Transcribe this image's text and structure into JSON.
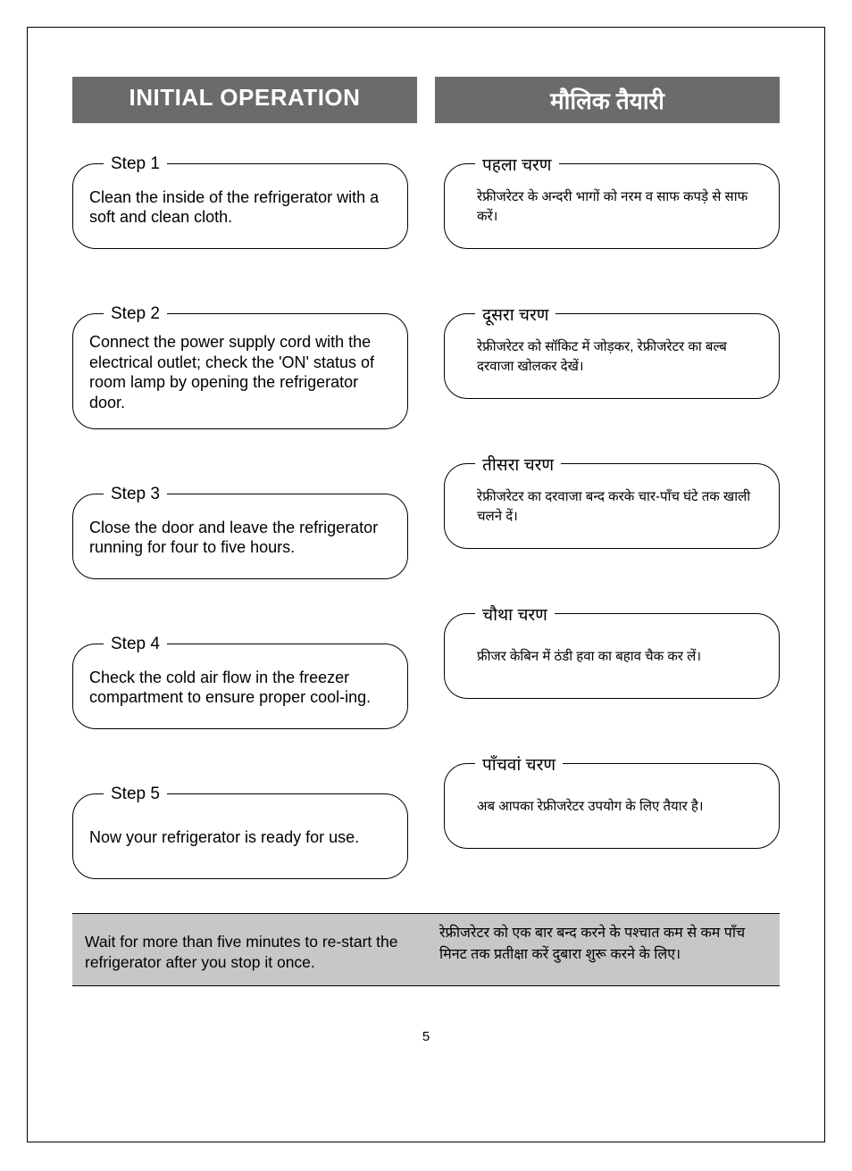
{
  "header": {
    "en": "INITIAL OPERATION",
    "hi": "मौलिक तैयारी"
  },
  "steps_en": [
    {
      "label": "Step 1",
      "text": "Clean the inside of the refrigerator with a soft and clean cloth."
    },
    {
      "label": "Step 2",
      "text": "Connect the power supply cord with the electrical outlet; check the 'ON' status of room lamp by opening the refrigerator door."
    },
    {
      "label": "Step 3",
      "text": "Close the door and leave the refrigerator running for four to five hours."
    },
    {
      "label": "Step 4",
      "text": "Check the cold air flow in the freezer compartment to ensure proper cool-ing."
    },
    {
      "label": "Step 5",
      "text": "Now your refrigerator is ready for use."
    }
  ],
  "steps_hi": [
    {
      "label": "पहला चरण",
      "text": "रेफ्रीजरेटर के अन्दरी भागों को नरम व साफ कपड़े से साफ करें।"
    },
    {
      "label": "दूसरा चरण",
      "text": "रेफ्रीजरेटर को सॉकिट में जोड़कर, रेफ्रीजरेटर का बल्ब दरवाजा खोलकर देखें।"
    },
    {
      "label": "तीसरा चरण",
      "text": "रेफ्रीजरेटर का दरवाजा बन्द करके चार-पाँच घंटे तक खाली चलने दें।"
    },
    {
      "label": "चौथा चरण",
      "text": "फ्रीजर केबिन में ठंडी हवा का बहाव चैक कर लें।"
    },
    {
      "label": "पाँचवां चरण",
      "text": "अब आपका रेफ्रीजरेटर उपयोग के लिए तैयार है।"
    }
  ],
  "note": {
    "en": "Wait for more than five minutes to re-start the refrigerator after you stop it once.",
    "hi": "रेफ्रीजरेटर को एक बार बन्द करने के पश्चात कम से कम पाँच मिनट तक प्रतीक्षा करें दुबारा शुरू करने के लिए।"
  },
  "page_number": "5",
  "colors": {
    "header_bg": "#6b6b6b",
    "header_fg": "#ffffff",
    "note_bg": "#c7c7c7",
    "border": "#000000",
    "text": "#000000",
    "page_bg": "#ffffff"
  }
}
